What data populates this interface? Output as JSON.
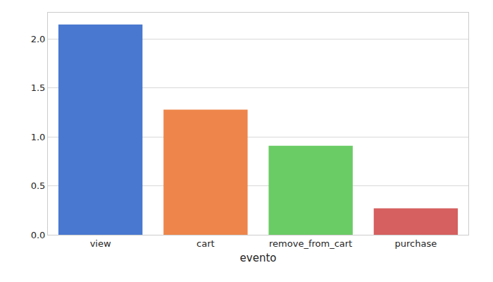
{
  "chart_data": {
    "type": "bar",
    "xlabel": "evento",
    "categories": [
      "view",
      "cart",
      "remove_from_cart",
      "purchase"
    ],
    "values": [
      2.15,
      1.28,
      0.91,
      0.27
    ],
    "colors": [
      "#4878d0",
      "#ee854a",
      "#6acc64",
      "#d65f5f"
    ],
    "ylim": [
      0,
      2.27
    ],
    "yticks": [
      {
        "value": 0,
        "label": "0.0"
      },
      0.5,
      {
        "value": 1,
        "label": "1.0"
      },
      1.5,
      {
        "value": 2,
        "label": "2.0"
      }
    ],
    "grid": true
  }
}
